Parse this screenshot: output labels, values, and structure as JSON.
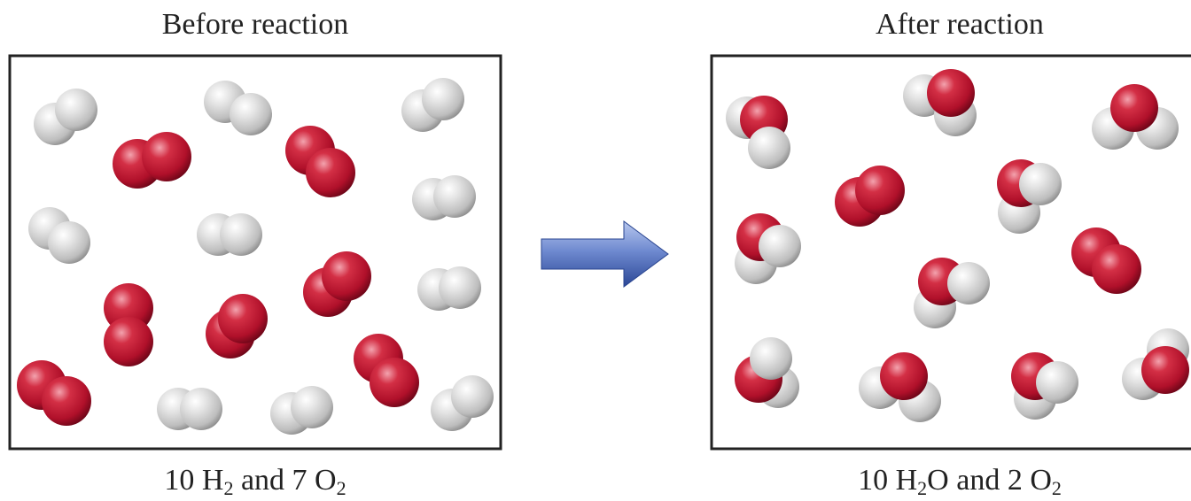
{
  "before": {
    "title": "Before reaction",
    "caption": {
      "n1": "10",
      "f1": "H",
      "s1": "2",
      "mid": " and ",
      "n2": "7",
      "f2": "O",
      "s2": "2"
    }
  },
  "after": {
    "title": "After reaction",
    "caption": {
      "n1": "10",
      "f1": "H",
      "s1": "2",
      "f1b": "O",
      "mid": " and ",
      "n2": "2",
      "f2": "O",
      "s2": "2"
    }
  },
  "colors": {
    "oxygen": "#c8102e",
    "hydrogen": "#d4d4d4",
    "arrow": "#3f5fb0",
    "frame": "#222222"
  }
}
